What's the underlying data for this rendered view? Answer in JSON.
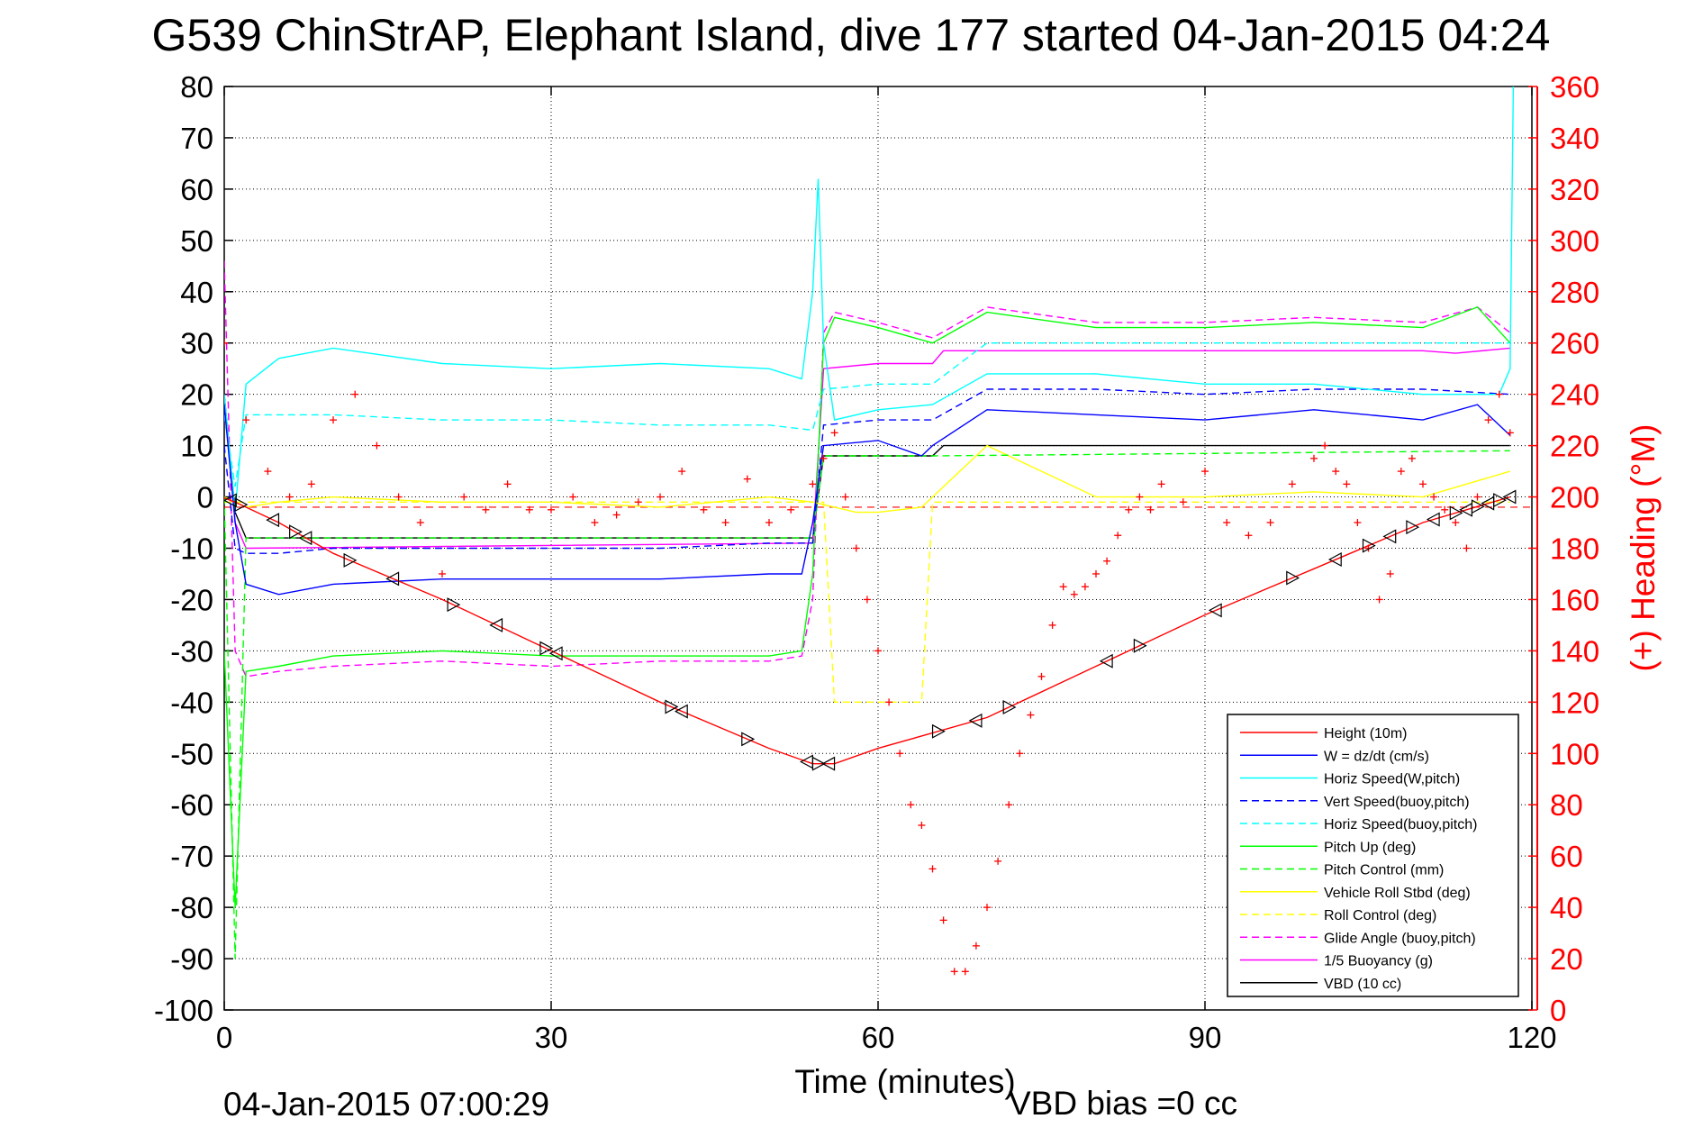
{
  "chart_data": {
    "type": "line",
    "title": "G539 ChinStrAP, Elephant Island, dive 177 started 04-Jan-2015 04:24",
    "xlabel": "Time (minutes)",
    "ylabel": "",
    "ylabel_right": "(+) Heading (°M)",
    "xlim": [
      0,
      120
    ],
    "ylim": [
      -100,
      80
    ],
    "ylim_right": [
      0,
      360
    ],
    "x_ticks": [
      "0",
      "30",
      "60",
      "90",
      "120"
    ],
    "y_ticks": [
      "80",
      "70",
      "60",
      "50",
      "40",
      "30",
      "20",
      "10",
      "0",
      "-10",
      "-20",
      "-30",
      "-40",
      "-50",
      "-60",
      "-70",
      "-80",
      "-90",
      "-100"
    ],
    "y_ticks_right": [
      "360",
      "340",
      "320",
      "300",
      "280",
      "260",
      "240",
      "220",
      "200",
      "180",
      "160",
      "140",
      "120",
      "100",
      "80",
      "60",
      "40",
      "20",
      "0"
    ],
    "grid": true,
    "legend_position": "bottom-right",
    "timestamp": "04-Jan-2015 07:00:29",
    "footer_note": "VBD bias =0 cc",
    "colors": {
      "height": "#ff0000",
      "w": "#0000ff",
      "horiz_speed": "#00ffff",
      "pitch": "#00ff00",
      "roll": "#ffff00",
      "glide": "#ff00ff",
      "buoyancy": "#ff00ff",
      "vbd": "#000000",
      "heading": "#ff0000"
    },
    "series": [
      {
        "name": "Height (10m)",
        "color": "#ff0000",
        "dash": "solid",
        "x": [
          0,
          1,
          5,
          10,
          20,
          30,
          40,
          50,
          54,
          56,
          60,
          70,
          80,
          90,
          100,
          110,
          118
        ],
        "y": [
          -0.2,
          -1,
          -5,
          -11,
          -20,
          -30,
          -40,
          -49,
          -52,
          -52,
          -49,
          -43,
          -33,
          -23,
          -14,
          -5,
          0
        ]
      },
      {
        "name": "W = dz/dt (cm/s)",
        "color": "#0000ff",
        "dash": "solid",
        "x": [
          0,
          1,
          2,
          5,
          10,
          20,
          30,
          40,
          50,
          53,
          54,
          55,
          60,
          64,
          65,
          70,
          80,
          90,
          100,
          110,
          115,
          118
        ],
        "y": [
          18,
          -5,
          -17,
          -19,
          -17,
          -16,
          -16,
          -16,
          -15,
          -15,
          -5,
          10,
          11,
          8,
          10,
          17,
          16,
          15,
          17,
          15,
          18,
          12
        ]
      },
      {
        "name": "Horiz Speed(W,pitch)",
        "color": "#00ffff",
        "dash": "solid",
        "x": [
          0,
          1,
          2,
          5,
          10,
          20,
          30,
          40,
          50,
          53,
          54,
          54.5,
          55,
          56,
          60,
          65,
          70,
          80,
          90,
          100,
          110,
          117,
          118,
          118.3
        ],
        "y": [
          20,
          -3,
          22,
          27,
          29,
          26,
          25,
          26,
          25,
          23,
          40,
          62,
          30,
          15,
          17,
          18,
          24,
          24,
          22,
          22,
          20,
          20,
          25,
          80
        ]
      },
      {
        "name": "Vert Speed(buoy,pitch)",
        "color": "#0000ff",
        "dash": "dashed",
        "x": [
          0,
          1,
          2,
          5,
          10,
          20,
          30,
          40,
          50,
          54,
          55,
          60,
          65,
          70,
          80,
          90,
          100,
          110,
          118
        ],
        "y": [
          10,
          -10,
          -11,
          -11,
          -10,
          -10,
          -10,
          -10,
          -9,
          -9,
          14,
          15,
          15,
          21,
          21,
          20,
          21,
          21,
          20
        ]
      },
      {
        "name": "Horiz Speed(buoy,pitch)",
        "color": "#00ffff",
        "dash": "dashed",
        "x": [
          0,
          1,
          2,
          5,
          10,
          20,
          30,
          40,
          50,
          54,
          55,
          60,
          65,
          70,
          80,
          90,
          100,
          110,
          118
        ],
        "y": [
          16,
          2,
          16,
          16,
          16,
          15,
          15,
          14,
          14,
          13,
          21,
          22,
          22,
          30,
          30,
          30,
          30,
          30,
          30
        ]
      },
      {
        "name": "Pitch Up (deg)",
        "color": "#00ff00",
        "dash": "solid",
        "x": [
          0,
          1,
          2,
          5,
          10,
          20,
          30,
          40,
          50,
          53,
          54,
          55,
          56,
          60,
          65,
          70,
          80,
          90,
          100,
          110,
          115,
          118
        ],
        "y": [
          -30,
          -80,
          -34,
          -33,
          -31,
          -30,
          -31,
          -31,
          -31,
          -30,
          -15,
          30,
          35,
          33,
          30,
          36,
          33,
          33,
          34,
          33,
          37,
          30
        ]
      },
      {
        "name": "Pitch Control (mm)",
        "color": "#00ff00",
        "dash": "dashed",
        "x": [
          0,
          1,
          2,
          54,
          55,
          60,
          65,
          118
        ],
        "y": [
          0,
          -90,
          -8,
          -8,
          8,
          8,
          8,
          9
        ]
      },
      {
        "name": "Vehicle Roll Stbd (deg)",
        "color": "#ffff00",
        "dash": "solid",
        "x": [
          0,
          2,
          5,
          10,
          20,
          30,
          40,
          50,
          54,
          56,
          58,
          60,
          64,
          65,
          70,
          80,
          90,
          100,
          110,
          118
        ],
        "y": [
          0,
          -2,
          -1,
          0,
          -1,
          -1,
          -2,
          0,
          -1,
          -2,
          -3,
          -3,
          -2,
          0,
          10,
          0,
          0,
          1,
          0,
          5
        ]
      },
      {
        "name": "Roll Control (deg)",
        "color": "#ffff00",
        "dash": "dashed",
        "x": [
          0,
          2,
          20,
          30,
          55,
          56,
          60,
          64,
          65,
          118
        ],
        "y": [
          -1,
          -1,
          -1,
          -1,
          -1,
          -40,
          -40,
          -40,
          -1,
          -1
        ]
      },
      {
        "name": "Glide Angle (buoy,pitch)",
        "color": "#ff00ff",
        "dash": "dashed",
        "x": [
          0,
          1,
          2,
          5,
          10,
          20,
          30,
          40,
          50,
          53,
          54,
          55,
          56,
          60,
          65,
          70,
          80,
          90,
          100,
          110,
          115,
          118
        ],
        "y": [
          46,
          -30,
          -35,
          -34,
          -33,
          -32,
          -33,
          -32,
          -32,
          -31,
          -20,
          32,
          36,
          34,
          31,
          37,
          34,
          34,
          35,
          34,
          37,
          32
        ]
      },
      {
        "name": "1/5 Buoyancy (g)",
        "color": "#ff00ff",
        "dash": "solid",
        "x": [
          0,
          1,
          2,
          54,
          55,
          60,
          65,
          66,
          110,
          113,
          118
        ],
        "y": [
          20,
          -5,
          -10,
          -9,
          25,
          26,
          26,
          28.5,
          28.5,
          28,
          29
        ]
      },
      {
        "name": "VBD (10 cc)",
        "color": "#000000",
        "dash": "solid",
        "x": [
          0,
          1,
          2,
          54,
          55,
          56,
          65,
          66,
          118
        ],
        "y": [
          20,
          -3,
          -8,
          -8,
          8,
          8,
          8,
          10,
          10
        ]
      }
    ],
    "heading_series": {
      "name": "(+) Heading (°M)",
      "axis": "right",
      "marker": "+",
      "color": "#ff0000",
      "x": [
        0,
        2,
        4,
        6,
        8,
        10,
        12,
        14,
        16,
        18,
        20,
        22,
        24,
        26,
        28,
        30,
        32,
        34,
        36,
        38,
        40,
        42,
        44,
        46,
        48,
        50,
        52,
        54,
        55,
        56,
        57,
        58,
        59,
        60,
        61,
        62,
        63,
        64,
        65,
        66,
        67,
        68,
        69,
        70,
        71,
        72,
        73,
        74,
        75,
        76,
        77,
        78,
        79,
        80,
        81,
        82,
        83,
        84,
        85,
        86,
        88,
        90,
        92,
        94,
        96,
        98,
        100,
        101,
        102,
        103,
        104,
        105,
        106,
        107,
        108,
        109,
        110,
        111,
        112,
        113,
        114,
        115,
        116,
        117,
        118
      ],
      "y": [
        260,
        230,
        210,
        200,
        205,
        230,
        240,
        220,
        200,
        190,
        170,
        200,
        195,
        205,
        195,
        195,
        200,
        190,
        193,
        198,
        200,
        210,
        195,
        190,
        207,
        190,
        195,
        205,
        215,
        225,
        200,
        180,
        160,
        140,
        120,
        100,
        80,
        72,
        55,
        35,
        15,
        15,
        25,
        40,
        58,
        80,
        100,
        115,
        130,
        150,
        165,
        162,
        165,
        170,
        175,
        185,
        195,
        200,
        195,
        205,
        198,
        210,
        190,
        185,
        190,
        205,
        215,
        220,
        210,
        205,
        190,
        180,
        160,
        170,
        210,
        215,
        205,
        200,
        195,
        190,
        180,
        200,
        230,
        240,
        225
      ]
    },
    "markers": {
      "x": [
        0.6,
        1.5,
        4.5,
        6.5,
        7.5,
        11.5,
        15.5,
        21,
        25,
        29.5,
        30.5,
        41,
        42,
        48,
        53.5,
        54.5,
        55.5,
        65.5,
        69,
        72,
        81,
        84,
        91,
        98,
        102,
        105,
        107,
        109,
        111,
        113,
        114,
        115,
        116,
        117,
        118
      ]
    }
  }
}
